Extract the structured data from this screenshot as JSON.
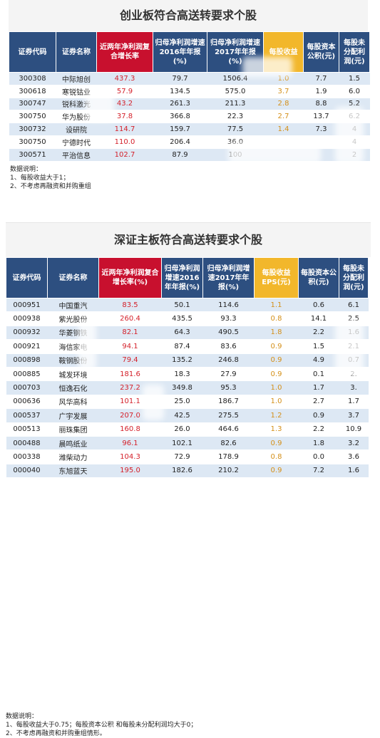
{
  "panel1": {
    "title": "创业板符合高送转要求个股",
    "headers": [
      "证券代码",
      "证券名称",
      "近两年净利润复合增长率",
      "归母净利润增速2016年年报(%)",
      "归母净利润增速2017年年报(%)",
      "每股收益",
      "每股资本公积(元)",
      "每股未分配利润(元)"
    ],
    "rows": [
      [
        "300308",
        "中际旭创",
        "437.3",
        "79.7",
        "1506.4",
        "1.0",
        "7.7",
        "1.5"
      ],
      [
        "300618",
        "寒锐钴业",
        "57.9",
        "134.5",
        "575.0",
        "3.7",
        "1.9",
        "6.0"
      ],
      [
        "300747",
        "锐科激光",
        "43.2",
        "261.3",
        "211.3",
        "2.8",
        "8.8",
        "5.2"
      ],
      [
        "300750",
        "华为股份",
        "37.8",
        "366.8",
        "22.3",
        "2.7",
        "13.7",
        "6.2"
      ],
      [
        "300732",
        "设研院",
        "114.7",
        "159.7",
        "77.5",
        "1.4",
        "7.3",
        "4"
      ],
      [
        "300750",
        "宁德时代",
        "110.0",
        "206.4",
        "36.0",
        "",
        "",
        "4"
      ],
      [
        "300571",
        "平治信息",
        "102.7",
        "87.9",
        "100",
        "",
        "",
        "2"
      ]
    ],
    "notes": [
      "数据说明：",
      "1、每股收益大于1；",
      "2、不考虑再融资和并购重组"
    ]
  },
  "panel2": {
    "title": "深证主板符合高送转要求个股",
    "headers": [
      "证券代码",
      "证券名称",
      "近两年净利润复合增长率(%)",
      "归母净利润增速2016年年报(%)",
      "归母净利润增速2017年年报(%)",
      "每股收益EPS(元)",
      "每股资本公积(元)",
      "每股未分配利润(元)"
    ],
    "rows": [
      [
        "000951",
        "中国重汽",
        "83.5",
        "50.1",
        "114.6",
        "1.1",
        "0.6",
        "6.1"
      ],
      [
        "000938",
        "紫光股份",
        "260.4",
        "435.5",
        "93.3",
        "0.8",
        "14.1",
        "2.5"
      ],
      [
        "000932",
        "华菱钢铁",
        "82.1",
        "64.3",
        "490.5",
        "1.8",
        "2.2",
        "1.6"
      ],
      [
        "000921",
        "海信家电",
        "94.1",
        "87.4",
        "83.6",
        "0.9",
        "1.5",
        "2.1"
      ],
      [
        "000898",
        "鞍钢股份",
        "79.4",
        "135.2",
        "246.8",
        "0.9",
        "4.9",
        "0.7"
      ],
      [
        "000885",
        "城发环境",
        "181.6",
        "18.3",
        "27.9",
        "0.9",
        "0.1",
        "2."
      ],
      [
        "000703",
        "恒逸石化",
        "237.2",
        "349.8",
        "95.3",
        "1.0",
        "1.7",
        "3."
      ],
      [
        "000636",
        "风华高科",
        "101.1",
        "25.0",
        "186.7",
        "1.0",
        "2.7",
        "1.7"
      ],
      [
        "000537",
        "广宇发展",
        "207.0",
        "42.5",
        "275.5",
        "1.2",
        "0.9",
        "3.7"
      ],
      [
        "000513",
        "丽珠集团",
        "160.8",
        "26.0",
        "464.6",
        "1.3",
        "2.2",
        "10.9"
      ],
      [
        "000488",
        "晨鸣纸业",
        "96.1",
        "102.1",
        "82.6",
        "0.9",
        "1.8",
        "3.2"
      ],
      [
        "000338",
        "潍柴动力",
        "104.3",
        "72.9",
        "178.9",
        "0.8",
        "0.0",
        "3.6"
      ],
      [
        "000040",
        "东旭蓝天",
        "195.0",
        "182.6",
        "210.2",
        "0.9",
        "7.2",
        "1.6"
      ]
    ],
    "notes": [
      "数据说明：",
      "1、每股收益大于0.75；每股资本公积 和每股未分配利润均大于0；",
      "2、不考虑再融资和并购重组情形。"
    ]
  }
}
